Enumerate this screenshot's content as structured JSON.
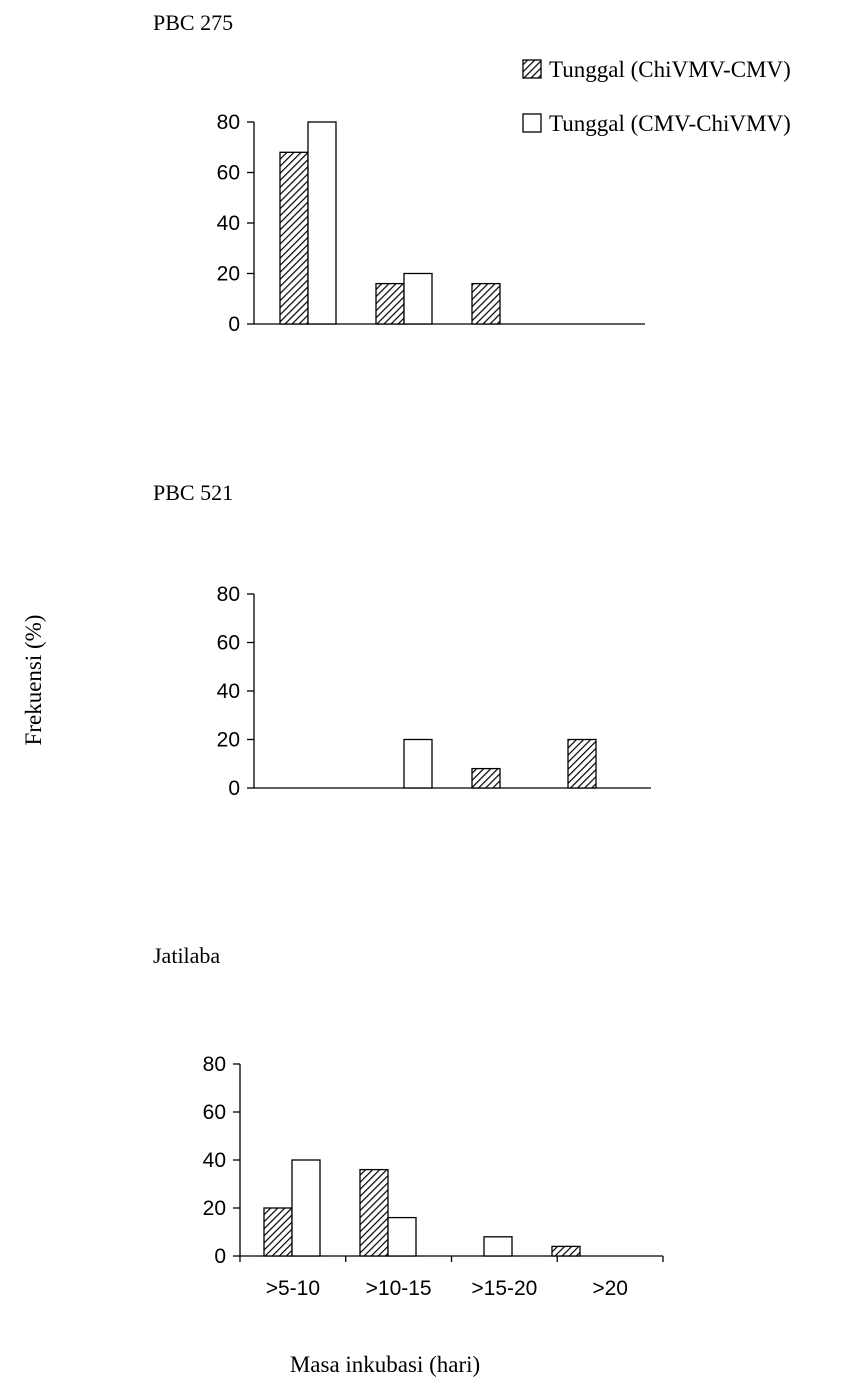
{
  "chart_data": [
    {
      "type": "bar",
      "title": "PBC 275",
      "categories": [
        ">5-10",
        ">10-15",
        ">15-20",
        ">20"
      ],
      "series": [
        {
          "name": "Tunggal (ChiVMV-CMV)",
          "values": [
            68,
            16,
            16,
            0
          ]
        },
        {
          "name": "Tunggal (CMV-ChiVMV)",
          "values": [
            80,
            20,
            0,
            0
          ]
        }
      ],
      "ylim": [
        0,
        80
      ],
      "yticks": [
        0,
        20,
        40,
        60,
        80
      ]
    },
    {
      "type": "bar",
      "title": "PBC 521",
      "categories": [
        ">5-10",
        ">10-15",
        ">15-20",
        ">20"
      ],
      "series": [
        {
          "name": "Tunggal (ChiVMV-CMV)",
          "values": [
            0,
            0,
            8,
            20
          ]
        },
        {
          "name": "Tunggal (CMV-ChiVMV)",
          "values": [
            0,
            20,
            0,
            0
          ]
        }
      ],
      "ylim": [
        0,
        80
      ],
      "yticks": [
        0,
        20,
        40,
        60,
        80
      ]
    },
    {
      "type": "bar",
      "title": "Jatilaba",
      "categories": [
        ">5-10",
        ">10-15",
        ">15-20",
        ">20"
      ],
      "series": [
        {
          "name": "Tunggal (ChiVMV-CMV)",
          "values": [
            20,
            36,
            0,
            4
          ]
        },
        {
          "name": "Tunggal (CMV-ChiVMV)",
          "values": [
            40,
            16,
            8,
            0
          ]
        }
      ],
      "ylim": [
        0,
        80
      ],
      "yticks": [
        0,
        20,
        40,
        60,
        80
      ]
    }
  ],
  "shared": {
    "ylabel": "Frekuensi (%)",
    "xlabel": "Masa inkubasi (hari)",
    "legend": {
      "placement": "top-right",
      "entries": [
        "Tunggal (ChiVMV-CMV)",
        "Tunggal (CMV-ChiVMV)"
      ]
    }
  },
  "colors": {
    "hatched": "#000000",
    "open": "#ffffff"
  }
}
